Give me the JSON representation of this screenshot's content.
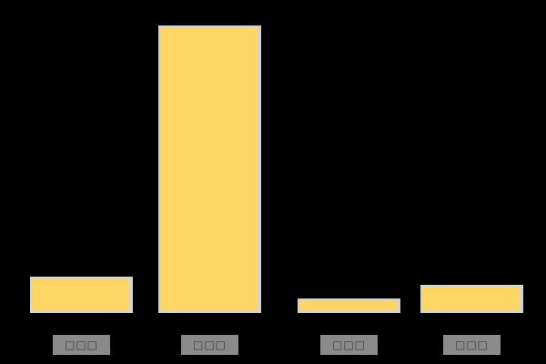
{
  "chart_data": {
    "type": "bar",
    "categories": [
      "□□□",
      "□□□",
      "□□□",
      "□□□"
    ],
    "values": [
      12.7,
      100,
      5.1,
      9.8
    ],
    "title": "",
    "xlabel": "",
    "ylabel": "",
    "ylim": [
      0,
      105
    ],
    "grid": false,
    "legend": false,
    "axes_visible": false,
    "bar_fill_color": "#ffd666",
    "bar_edge_color": "#d3d3d3",
    "background_color": "#000000",
    "tick_label_bg_color": "#8a8a8a",
    "tick_label_text_color": "#3f3f3f",
    "note": "x tick labels are rendered in the source image as gray boxes with illegible missing-glyph (tofu) characters; no numeric axis or labels are visible, values are relative bar heights with tallest bar = 100"
  }
}
